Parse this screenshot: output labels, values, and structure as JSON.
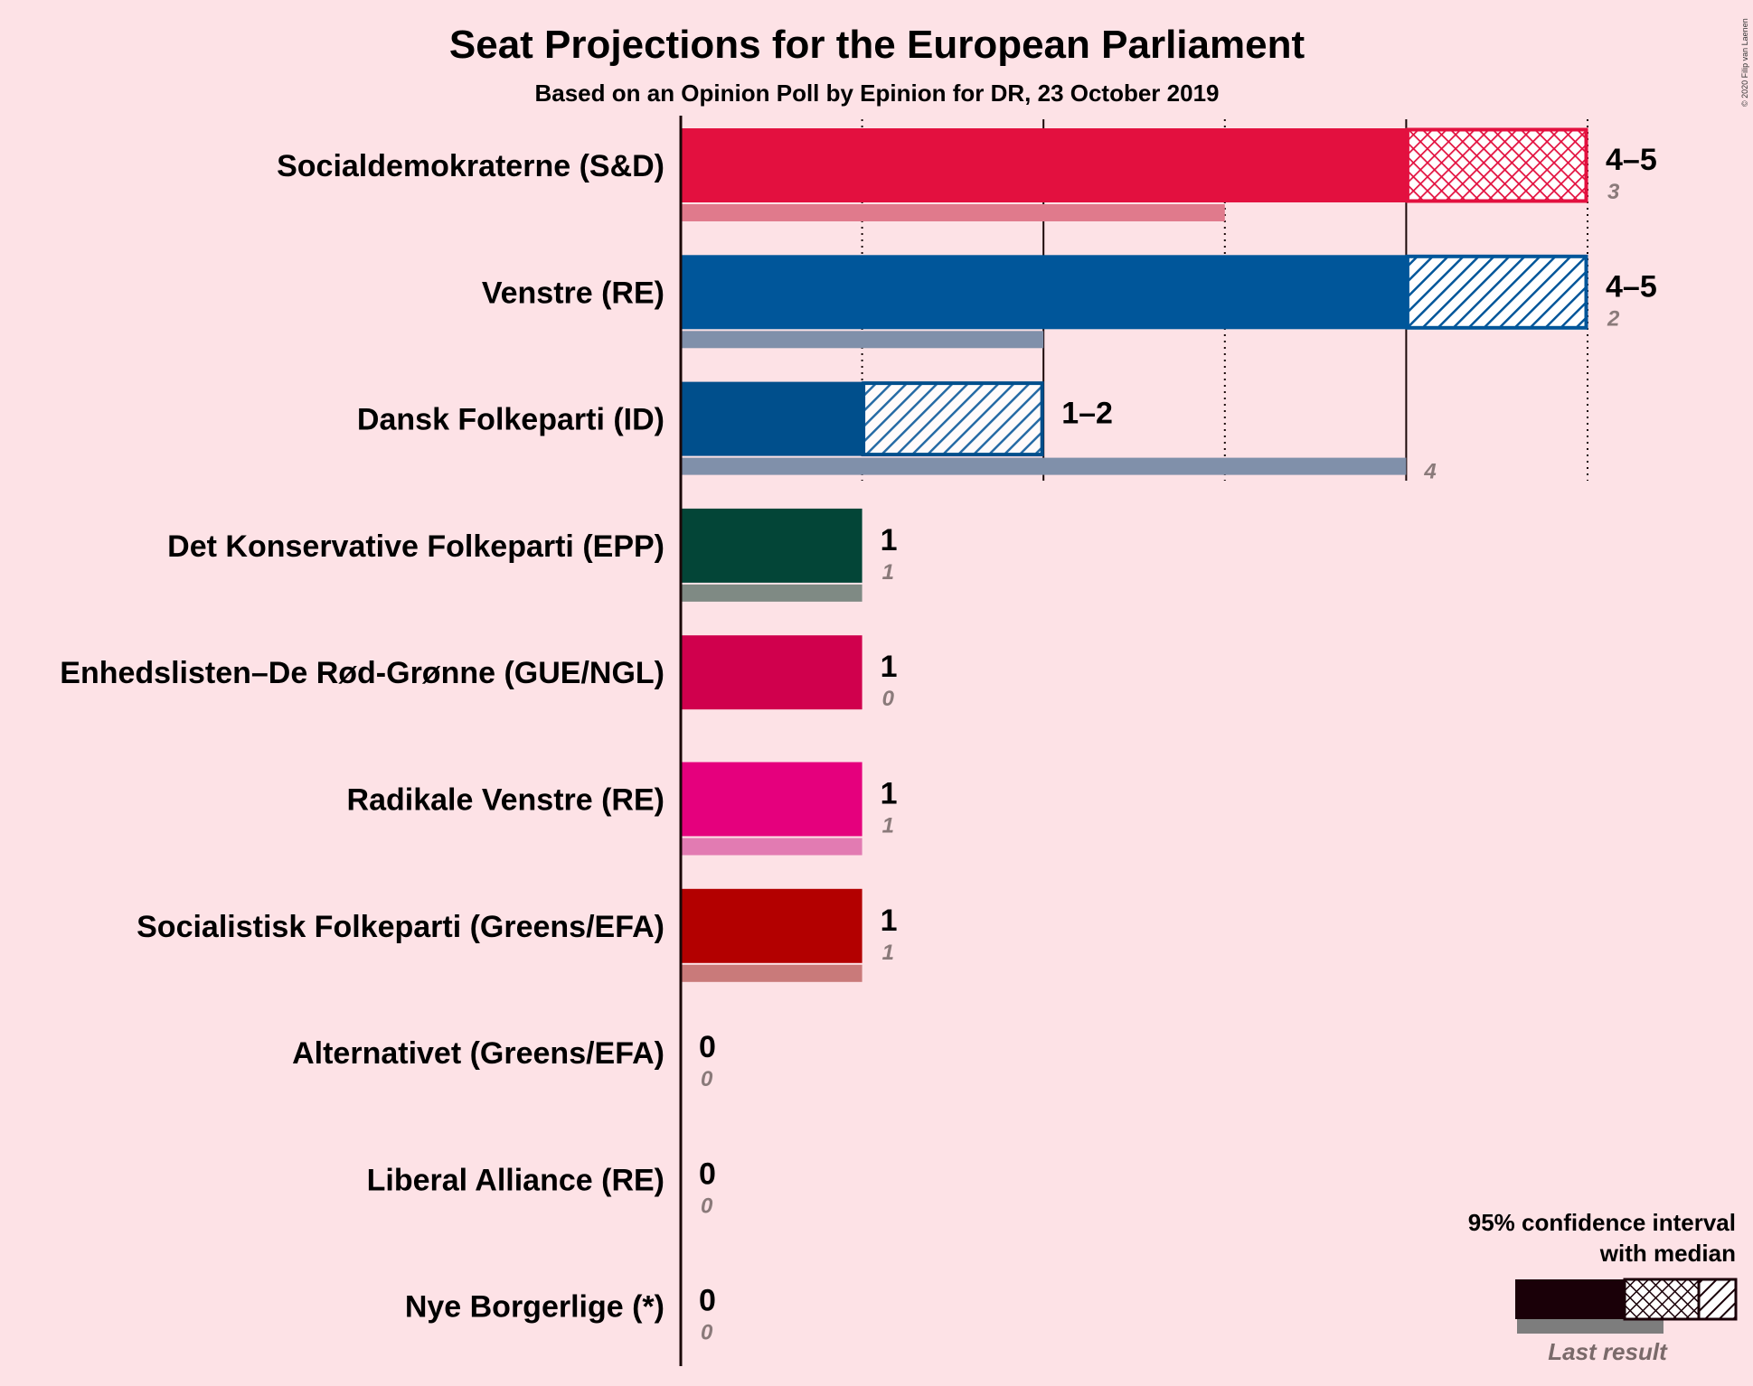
{
  "title": "Seat Projections for the European Parliament",
  "subtitle": "Based on an Opinion Poll by Epinion for DR, 23 October 2019",
  "copyright": "© 2020 Filip van Laenen",
  "legend": {
    "line1": "95% confidence interval",
    "line2": "with median",
    "last_result": "Last result"
  },
  "chart_data": {
    "type": "bar",
    "orientation": "horizontal",
    "title": "Seat Projections for the European Parliament",
    "subtitle": "Based on an Opinion Poll by Epinion for DR, 23 October 2019",
    "xlim": [
      0,
      5
    ],
    "grid": "vertical lines at each seat, dotted",
    "legend_placement": "bottom-right",
    "parties": [
      {
        "name": "Socialdemokraterne (S&D)",
        "low": 4,
        "median": 4,
        "high": 5,
        "range_label": "4–5",
        "last": 3,
        "last_label": "3",
        "color": "#e3103f",
        "last_color": "#e07a8c",
        "hatch": "cross"
      },
      {
        "name": "Venstre (RE)",
        "low": 4,
        "median": 4,
        "high": 5,
        "range_label": "4–5",
        "last": 2,
        "last_label": "2",
        "color": "#00569a",
        "last_color": "#8090aa",
        "hatch": "diag"
      },
      {
        "name": "Dansk Folkeparti (ID)",
        "low": 1,
        "median": 1,
        "high": 2,
        "range_label": "1–2",
        "last": 4,
        "last_label": "4",
        "color": "#004f8c",
        "last_color": "#8090aa",
        "hatch": "diag"
      },
      {
        "name": "Det Konservative Folkeparti (EPP)",
        "low": 1,
        "median": 1,
        "high": 1,
        "range_label": "1",
        "last": 1,
        "last_label": "1",
        "color": "#034537",
        "last_color": "#7f8a84",
        "hatch": "none"
      },
      {
        "name": "Enhedslisten–De Rød-Grønne (GUE/NGL)",
        "low": 1,
        "median": 1,
        "high": 1,
        "range_label": "1",
        "last": 0,
        "last_label": "0",
        "color": "#d0004d",
        "last_color": "#e07a9a",
        "hatch": "none"
      },
      {
        "name": "Radikale Venstre (RE)",
        "low": 1,
        "median": 1,
        "high": 1,
        "range_label": "1",
        "last": 1,
        "last_label": "1",
        "color": "#e5007d",
        "last_color": "#e27bb2",
        "hatch": "none"
      },
      {
        "name": "Socialistisk Folkeparti (Greens/EFA)",
        "low": 1,
        "median": 1,
        "high": 1,
        "range_label": "1",
        "last": 1,
        "last_label": "1",
        "color": "#b30000",
        "last_color": "#c97a7a",
        "hatch": "none"
      },
      {
        "name": "Alternativet (Greens/EFA)",
        "low": 0,
        "median": 0,
        "high": 0,
        "range_label": "0",
        "last": 0,
        "last_label": "0",
        "color": "#2b8738",
        "last_color": "#8a9a8a",
        "hatch": "none"
      },
      {
        "name": "Liberal Alliance (RE)",
        "low": 0,
        "median": 0,
        "high": 0,
        "range_label": "0",
        "last": 0,
        "last_label": "0",
        "color": "#21b1c2",
        "last_color": "#8aa0a4",
        "hatch": "none"
      },
      {
        "name": "Nye Borgerlige (*)",
        "low": 0,
        "median": 0,
        "high": 0,
        "range_label": "0",
        "last": 0,
        "last_label": "0",
        "color": "#124b52",
        "last_color": "#8a9a9a",
        "hatch": "none"
      }
    ]
  }
}
